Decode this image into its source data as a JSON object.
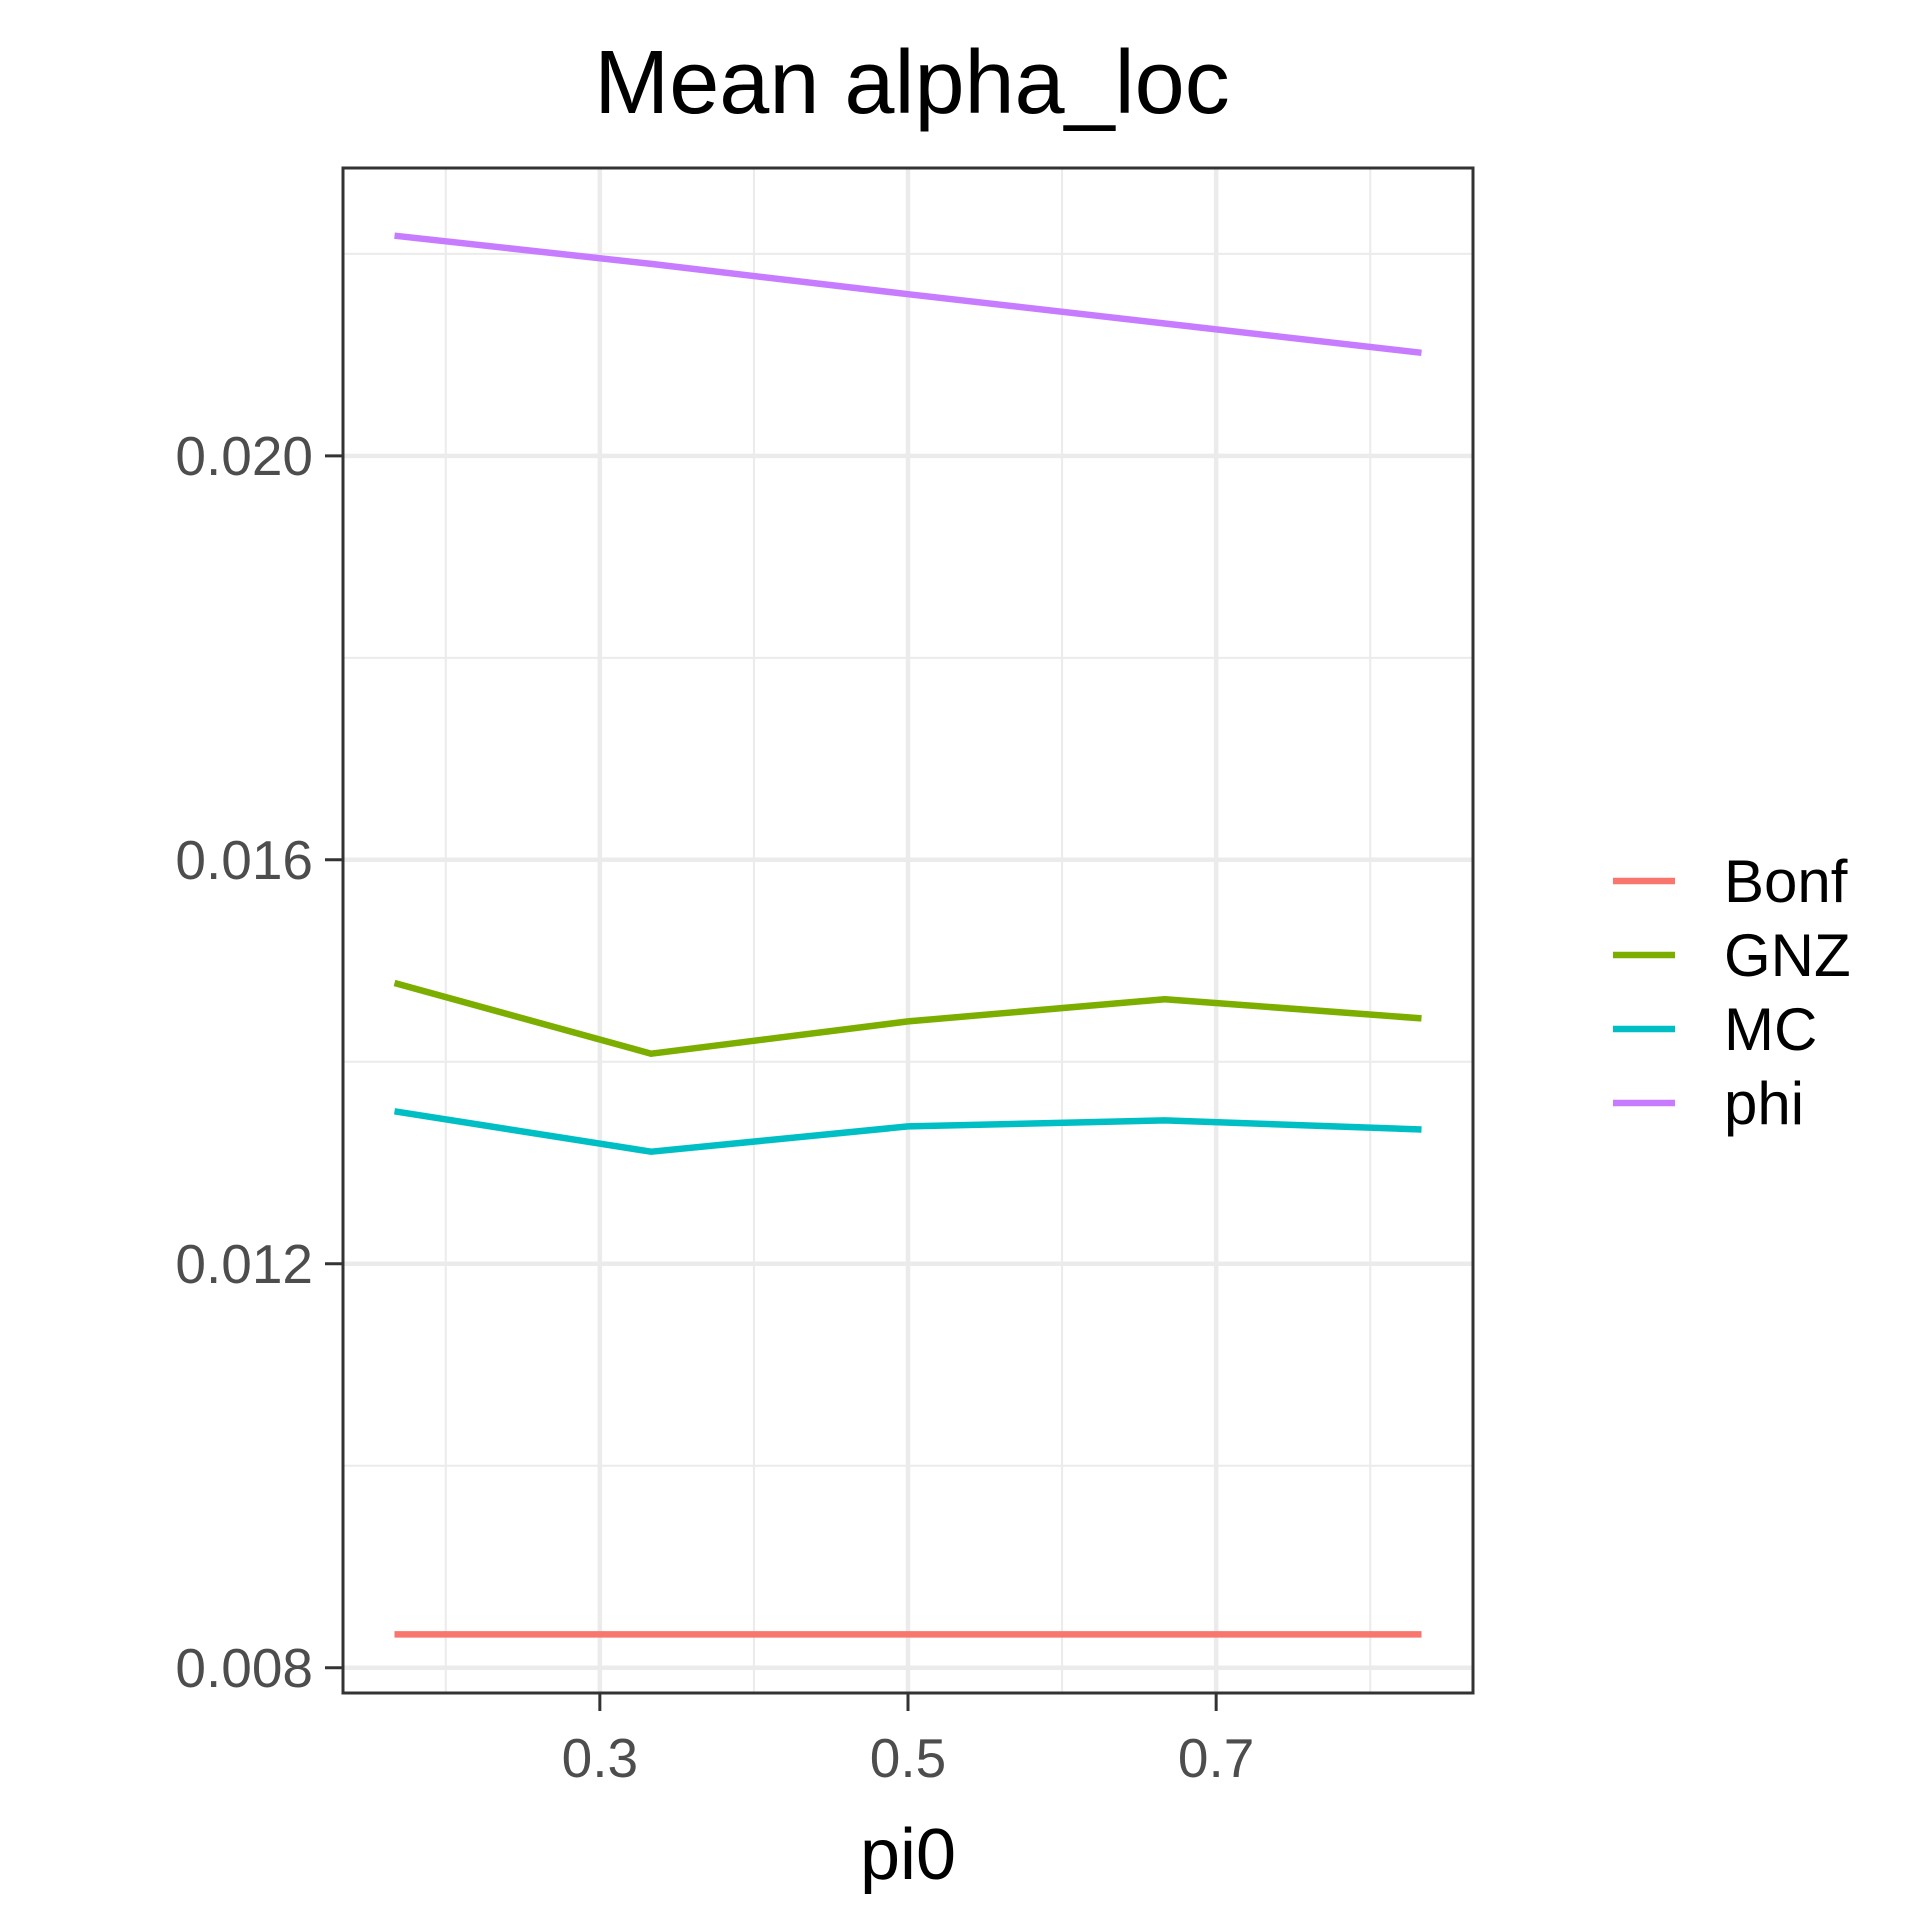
{
  "chart_data": {
    "type": "line",
    "title": "Mean alpha_loc",
    "xlabel": "pi0",
    "ylabel": "",
    "xlim": [
      0.1333,
      0.8667
    ],
    "ylim": [
      0.00775,
      0.02285
    ],
    "x_ticks": [
      0.3,
      0.5,
      0.7
    ],
    "x_tick_labels": [
      "0.3",
      "0.5",
      "0.7"
    ],
    "y_ticks": [
      0.008,
      0.012,
      0.016,
      0.02
    ],
    "y_tick_labels": [
      "0.008",
      "0.012",
      "0.016",
      "0.020"
    ],
    "x_minor": [
      0.2,
      0.4,
      0.6,
      0.8
    ],
    "y_minor": [
      0.01,
      0.014,
      0.018,
      0.022
    ],
    "grid": true,
    "legend_position": "right",
    "x": [
      0.1667,
      0.3333,
      0.5,
      0.6667,
      0.8333
    ],
    "series": [
      {
        "name": "Bonf",
        "color": "#F8766D",
        "values": [
          0.00833,
          0.00833,
          0.00833,
          0.00833,
          0.00833
        ]
      },
      {
        "name": "GNZ",
        "color": "#7CAE00",
        "values": [
          0.01478,
          0.01408,
          0.0144,
          0.01462,
          0.01443
        ]
      },
      {
        "name": "MC",
        "color": "#00BFC4",
        "values": [
          0.01351,
          0.01311,
          0.01336,
          0.01342,
          0.01333
        ]
      },
      {
        "name": "phi",
        "color": "#C77CFF",
        "values": [
          0.02218,
          0.0219,
          0.0216,
          0.02131,
          0.02102
        ]
      }
    ]
  }
}
